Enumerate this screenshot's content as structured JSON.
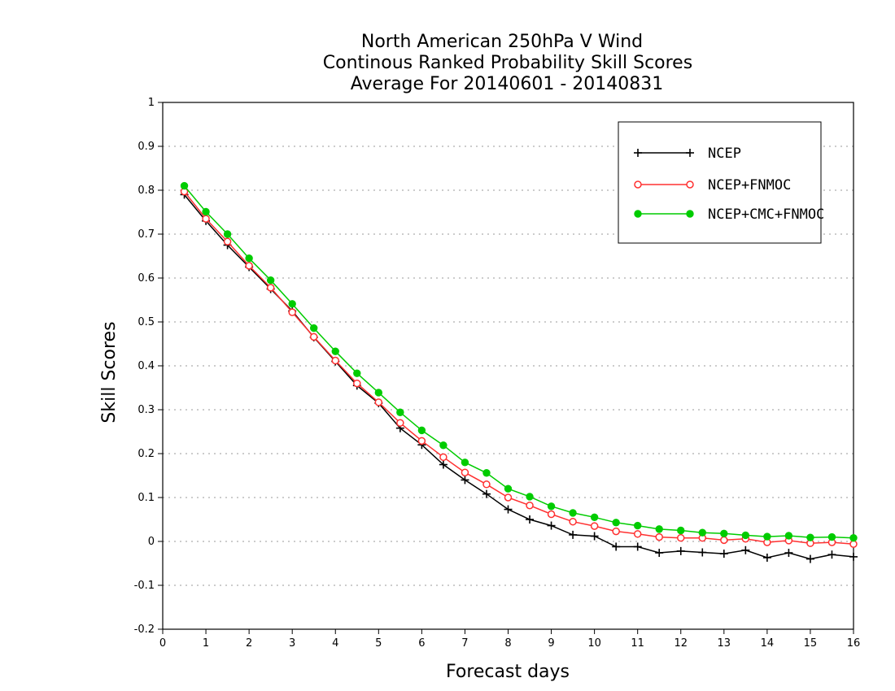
{
  "chart_data": {
    "type": "line",
    "title_lines": [
      "North American 250hPa V Wind",
      "Continous Ranked Probability Skill Scores",
      "Average For 20140601 - 20140831"
    ],
    "xlabel": "Forecast days",
    "ylabel": "Skill Scores",
    "xlim": [
      0,
      16
    ],
    "ylim": [
      -0.2,
      1
    ],
    "xticks": [
      0,
      1,
      2,
      3,
      4,
      5,
      6,
      7,
      8,
      9,
      10,
      11,
      12,
      13,
      14,
      15,
      16
    ],
    "yticks": [
      -0.2,
      -0.1,
      0,
      0.1,
      0.2,
      0.3,
      0.4,
      0.5,
      0.6,
      0.7,
      0.8,
      0.9,
      1
    ],
    "ytick_labels": [
      "-0.2",
      "-0.1",
      "0",
      "0.1",
      "0.2",
      "0.3",
      "0.4",
      "0.5",
      "0.6",
      "0.7",
      "0.8",
      "0.9",
      "1"
    ],
    "grid": "horizontal dotted",
    "legend_position": "top-right",
    "x": [
      0.5,
      1,
      1.5,
      2,
      2.5,
      3,
      3.5,
      4,
      4.5,
      5,
      5.5,
      6,
      6.5,
      7,
      7.5,
      8,
      8.5,
      9,
      9.5,
      10,
      10.5,
      11,
      11.5,
      12,
      12.5,
      13,
      13.5,
      14,
      14.5,
      15,
      15.5,
      16
    ],
    "series": [
      {
        "name": "NCEP",
        "color": "#000000",
        "marker": "plus",
        "values": [
          0.79,
          0.73,
          0.675,
          0.625,
          0.575,
          0.525,
          0.465,
          0.41,
          0.355,
          0.315,
          0.258,
          0.22,
          0.175,
          0.14,
          0.108,
          0.073,
          0.05,
          0.036,
          0.015,
          0.012,
          -0.012,
          -0.012,
          -0.026,
          -0.022,
          -0.025,
          -0.028,
          -0.02,
          -0.037,
          -0.026,
          -0.04,
          -0.03,
          -0.035
        ]
      },
      {
        "name": "NCEP+FNMOC",
        "color": "#ff3030",
        "marker": "open-circle",
        "values": [
          0.797,
          0.735,
          0.683,
          0.628,
          0.578,
          0.522,
          0.466,
          0.412,
          0.36,
          0.317,
          0.27,
          0.229,
          0.192,
          0.157,
          0.13,
          0.1,
          0.082,
          0.062,
          0.045,
          0.035,
          0.023,
          0.017,
          0.01,
          0.008,
          0.008,
          0.003,
          0.006,
          -0.002,
          0.002,
          -0.004,
          -0.002,
          -0.006
        ]
      },
      {
        "name": "NCEP+CMC+FNMOC",
        "color": "#00cc00",
        "marker": "filled-circle",
        "values": [
          0.81,
          0.751,
          0.7,
          0.645,
          0.595,
          0.541,
          0.486,
          0.433,
          0.383,
          0.339,
          0.294,
          0.253,
          0.219,
          0.18,
          0.156,
          0.12,
          0.102,
          0.08,
          0.065,
          0.055,
          0.043,
          0.036,
          0.028,
          0.025,
          0.02,
          0.018,
          0.014,
          0.011,
          0.013,
          0.009,
          0.01,
          0.008
        ]
      }
    ]
  }
}
